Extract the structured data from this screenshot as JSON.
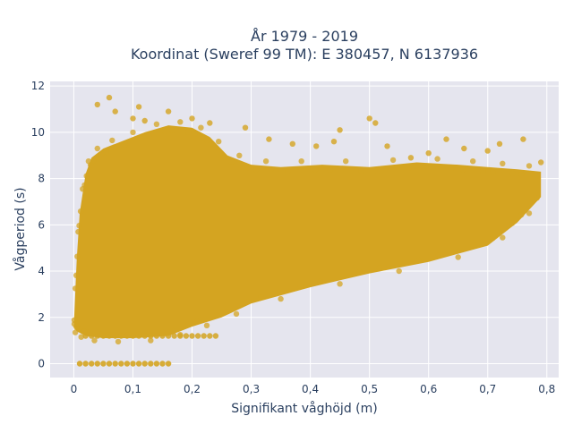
{
  "chart_data": {
    "type": "scatter",
    "title_line1": "År 1979 - 2019",
    "title_line2": "Koordinat (Sweref 99 TM): E 380457, N 6137936",
    "xlabel": "Signifikant våghöjd (m)",
    "ylabel": "Vågperiod (s)",
    "xlim": [
      -0.04,
      0.82
    ],
    "ylim": [
      -0.6,
      12.2
    ],
    "x_ticks": [
      0,
      0.1,
      0.2,
      0.3,
      0.4,
      0.5,
      0.6,
      0.7,
      0.8
    ],
    "x_tick_labels": [
      "0",
      "0,1",
      "0,2",
      "0,3",
      "0,4",
      "0,5",
      "0,6",
      "0,7",
      "0,8"
    ],
    "y_ticks": [
      0,
      2,
      4,
      6,
      8,
      10,
      12
    ],
    "y_tick_labels": [
      "0",
      "2",
      "4",
      "6",
      "8",
      "10",
      "12"
    ],
    "grid": true,
    "marker_color": "#D4A421",
    "plot_bg": "#E5E5EE",
    "outliers": [
      {
        "x": 0.06,
        "y": 11.5
      },
      {
        "x": 0.04,
        "y": 11.2
      },
      {
        "x": 0.11,
        "y": 11.1
      },
      {
        "x": 0.07,
        "y": 10.9
      },
      {
        "x": 0.1,
        "y": 10.6
      },
      {
        "x": 0.12,
        "y": 10.5
      },
      {
        "x": 0.16,
        "y": 10.9
      },
      {
        "x": 0.2,
        "y": 10.6
      },
      {
        "x": 0.23,
        "y": 10.4
      },
      {
        "x": 0.29,
        "y": 10.2
      },
      {
        "x": 0.33,
        "y": 9.7
      },
      {
        "x": 0.37,
        "y": 9.5
      },
      {
        "x": 0.45,
        "y": 10.1
      },
      {
        "x": 0.5,
        "y": 10.6
      },
      {
        "x": 0.51,
        "y": 10.4
      },
      {
        "x": 0.44,
        "y": 9.6
      },
      {
        "x": 0.41,
        "y": 9.4
      },
      {
        "x": 0.53,
        "y": 9.4
      },
      {
        "x": 0.63,
        "y": 9.7
      },
      {
        "x": 0.66,
        "y": 9.3
      },
      {
        "x": 0.72,
        "y": 9.5
      },
      {
        "x": 0.76,
        "y": 9.7
      },
      {
        "x": 0.79,
        "y": 8.7
      },
      {
        "x": 0.6,
        "y": 9.1
      },
      {
        "x": 0.57,
        "y": 8.9
      },
      {
        "x": 0.7,
        "y": 9.2
      }
    ],
    "zero_period_points": [
      {
        "x": 0.01,
        "y": 0
      },
      {
        "x": 0.02,
        "y": 0
      },
      {
        "x": 0.03,
        "y": 0
      },
      {
        "x": 0.04,
        "y": 0
      },
      {
        "x": 0.05,
        "y": 0
      },
      {
        "x": 0.06,
        "y": 0
      },
      {
        "x": 0.07,
        "y": 0
      },
      {
        "x": 0.08,
        "y": 0
      },
      {
        "x": 0.09,
        "y": 0
      },
      {
        "x": 0.1,
        "y": 0
      },
      {
        "x": 0.11,
        "y": 0
      },
      {
        "x": 0.12,
        "y": 0
      },
      {
        "x": 0.13,
        "y": 0
      },
      {
        "x": 0.14,
        "y": 0
      },
      {
        "x": 0.15,
        "y": 0
      },
      {
        "x": 0.16,
        "y": 0
      }
    ]
  }
}
